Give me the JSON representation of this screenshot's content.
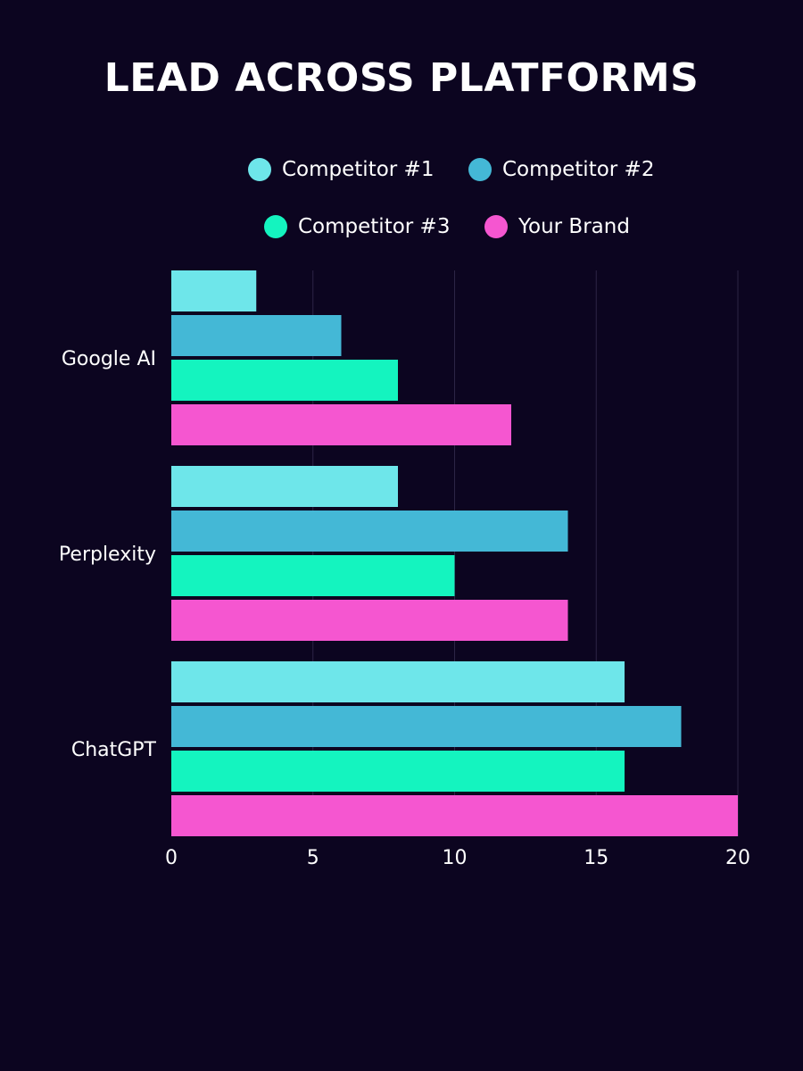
{
  "chart_data": {
    "type": "bar",
    "orientation": "horizontal",
    "title": "LEAD ACROSS PLATFORMS",
    "categories": [
      "Google AI",
      "Perplexity",
      "ChatGPT"
    ],
    "series": [
      {
        "name": "Competitor #1",
        "color": "#6ee6ea",
        "values": [
          3,
          8,
          16
        ]
      },
      {
        "name": "Competitor #2",
        "color": "#44b8d6",
        "values": [
          6,
          14,
          18
        ]
      },
      {
        "name": "Competitor #3",
        "color": "#14f4bf",
        "values": [
          8,
          10,
          16
        ]
      },
      {
        "name": "Your Brand",
        "color": "#f556d0",
        "values": [
          12,
          14,
          20
        ]
      }
    ],
    "xlim": [
      0,
      20
    ],
    "xticks": [
      "0",
      "5",
      "10",
      "15",
      "20"
    ],
    "grid": true,
    "legend": "top",
    "background": "#0c0520"
  }
}
